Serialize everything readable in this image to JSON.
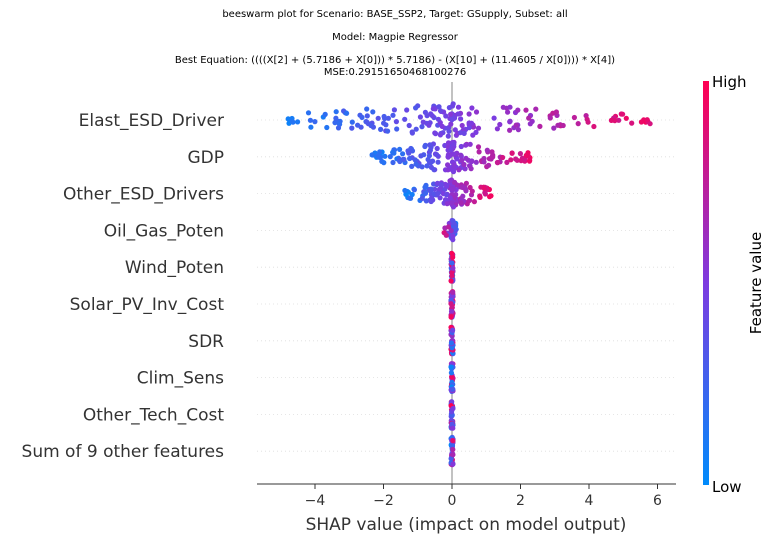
{
  "chart_data": {
    "type": "scatter",
    "subtype": "shap-beeswarm",
    "title_lines": [
      "beeswarm plot for Scenario: BASE_SSP2, Target: GSupply, Subset: all",
      "Model: Magpie Regressor",
      "Best Equation: ((((X[2] + (5.7186 + X[0])) * 5.7186) - (X[10] + (11.4605 / X[0]))) * X[4])",
      "MSE:0.29151650468100276"
    ],
    "xlabel": "SHAP value (impact on model output)",
    "xlim": [
      -5.6,
      6.4
    ],
    "xticks": [
      -4,
      -2,
      0,
      2,
      4,
      6
    ],
    "xtick_labels": [
      "−4",
      "−2",
      "0",
      "2",
      "4",
      "6"
    ],
    "features": [
      {
        "name": "Elast_ESD_Driver",
        "min": -5.0,
        "max": 5.9,
        "n": 190,
        "spread": 0.45,
        "colorTrend": 1.0
      },
      {
        "name": "GDP",
        "min": -2.4,
        "max": 2.4,
        "n": 170,
        "spread": 0.42,
        "colorTrend": 1.0
      },
      {
        "name": "Other_ESD_Drivers",
        "min": -1.4,
        "max": 1.15,
        "n": 130,
        "spread": 0.38,
        "colorTrend": 1.0
      },
      {
        "name": "Oil_Gas_Poten",
        "min": -0.25,
        "max": 0.15,
        "n": 35,
        "spread": 0.28,
        "colorTrend": -1.0
      },
      {
        "name": "Wind_Poten",
        "min": -0.03,
        "max": 0.03,
        "n": 40,
        "spread": 0.38,
        "colorTrend": 0.0
      },
      {
        "name": "Solar_PV_Inv_Cost",
        "min": -0.03,
        "max": 0.03,
        "n": 40,
        "spread": 0.38,
        "colorTrend": 0.0
      },
      {
        "name": "SDR",
        "min": -0.03,
        "max": 0.03,
        "n": 40,
        "spread": 0.38,
        "colorTrend": 0.0
      },
      {
        "name": "Clim_Sens",
        "min": -0.03,
        "max": 0.03,
        "n": 40,
        "spread": 0.38,
        "colorTrend": 0.0
      },
      {
        "name": "Other_Tech_Cost",
        "min": -0.03,
        "max": 0.03,
        "n": 40,
        "spread": 0.38,
        "colorTrend": 0.0
      },
      {
        "name": "Sum of 9 other features",
        "min": -0.03,
        "max": 0.03,
        "n": 40,
        "spread": 0.38,
        "colorTrend": 0.0
      }
    ],
    "colorbar": {
      "label": "Feature value",
      "high": "High",
      "low": "Low"
    },
    "colors": {
      "low": "#008bfb",
      "mid": "#7d3be0",
      "high": "#ff0052",
      "zero_line": "#999999",
      "grid": "#dddddd"
    },
    "grid": true
  }
}
